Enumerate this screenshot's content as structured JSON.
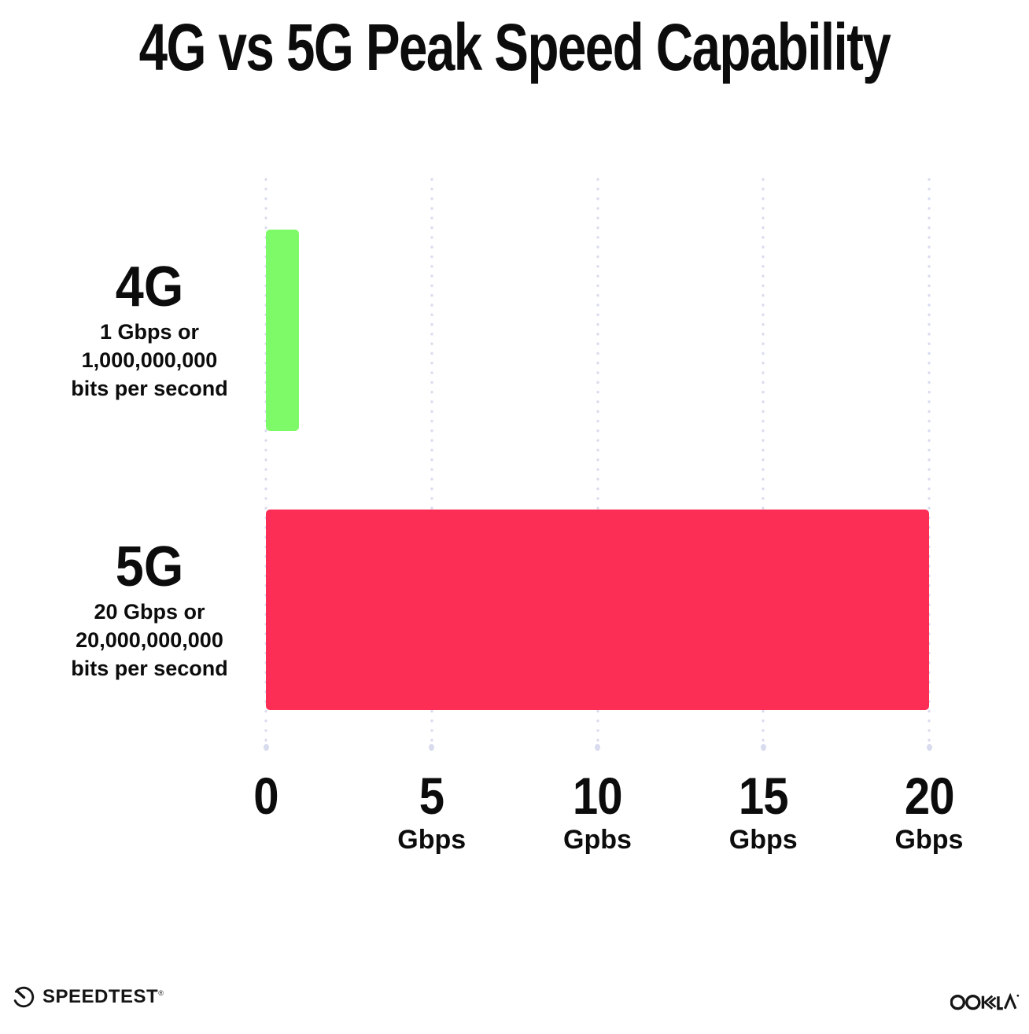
{
  "title": "4G vs 5G Peak Speed Capability",
  "chart_data": {
    "type": "bar",
    "orientation": "horizontal",
    "title": "4G vs 5G Peak Speed Capability",
    "categories": [
      "4G",
      "5G"
    ],
    "values": [
      1,
      20
    ],
    "value_unit": "Gbps",
    "category_sublabels": [
      {
        "line1": "1 Gbps or",
        "line2": "1,000,000,000",
        "line3": "bits per second"
      },
      {
        "line1": "20 Gbps or",
        "line2": "20,000,000,000",
        "line3": "bits per second"
      }
    ],
    "xlim": [
      0,
      20
    ],
    "x_ticks": [
      {
        "label": "0",
        "unit": ""
      },
      {
        "label": "5",
        "unit": "Gbps"
      },
      {
        "label": "10",
        "unit": "Gpbs"
      },
      {
        "label": "15",
        "unit": "Gbps"
      },
      {
        "label": "20",
        "unit": "Gbps"
      }
    ],
    "bar_colors": [
      "#7EF967",
      "#FD2E55"
    ],
    "grid": "vertical dotted gridlines at each tick",
    "gridline_color": "#D9DCEE",
    "legend": "none"
  },
  "footer": {
    "speedtest": {
      "label": "SPEEDTEST",
      "mark": "®"
    },
    "ookla": {
      "label": "OOKLA",
      "mark": "®"
    }
  },
  "colors": {
    "background": "#FFFFFF",
    "text": "#0C0C0C",
    "bar_4g": "#7EF967",
    "bar_5g": "#FD2E55",
    "gridline": "#D9DCEE"
  }
}
